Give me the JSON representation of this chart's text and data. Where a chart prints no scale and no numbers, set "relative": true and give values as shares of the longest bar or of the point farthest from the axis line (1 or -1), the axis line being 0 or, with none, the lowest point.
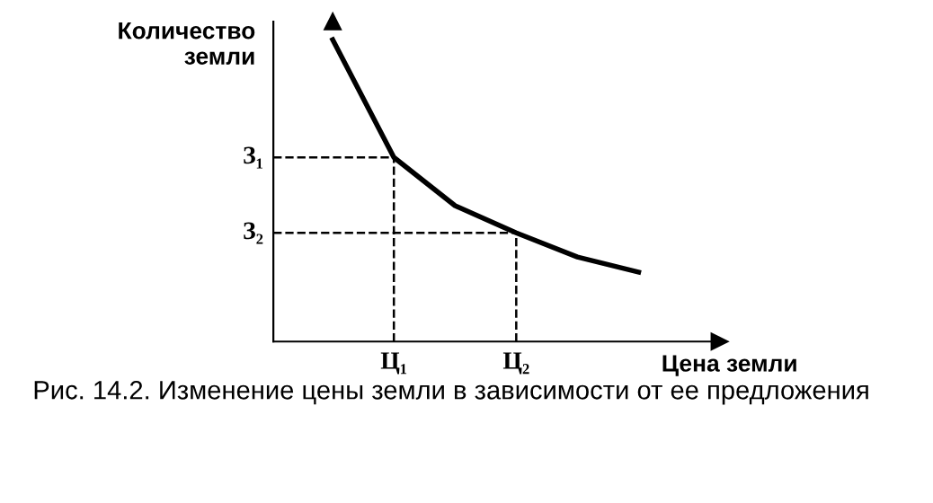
{
  "chart_data": {
    "type": "line",
    "relative": true,
    "xlabel": "Цена земли",
    "ylabel": "Количество\nземли",
    "tick_labels": "x",
    "marker": "none",
    "categories": [
      null,
      "Ц₁",
      null,
      "Ц₂",
      null,
      null
    ],
    "series": [
      {
        "color": "#000000",
        "values": [
          1,
          0.61,
          0.45,
          0.36,
          0.28,
          0.23
        ]
      }
    ],
    "ref_lines": [
      {
        "axis": "y",
        "value": 0.61,
        "label": "З₁",
        "color": "#000000",
        "line_style": "dashed"
      },
      {
        "axis": "y",
        "value": 0.36,
        "label": "З₂",
        "color": "#000000",
        "line_style": "dashed"
      },
      {
        "axis": "x",
        "value": "Ц₁",
        "label": null,
        "color": "#000000",
        "line_style": "dashed"
      },
      {
        "axis": "x",
        "value": "Ц₂",
        "label": null,
        "color": "#000000",
        "line_style": "dashed"
      }
    ],
    "annotations": [
      "Рис. 14.2. Изменение цены земли в зависимости от ее предложения"
    ]
  }
}
